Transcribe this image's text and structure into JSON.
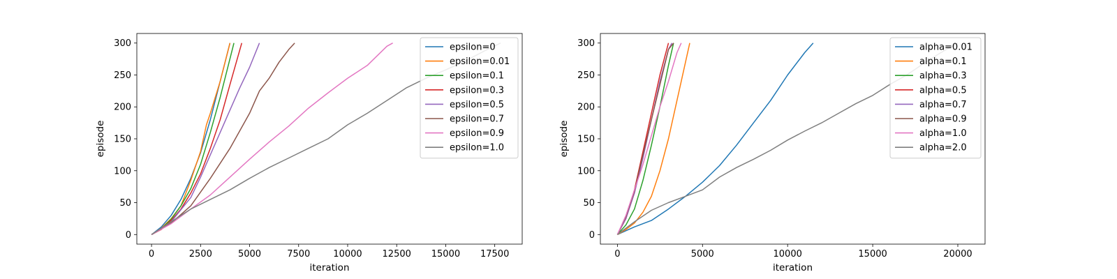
{
  "chart_data": [
    {
      "type": "line",
      "xlabel": "iteration",
      "ylabel": "episode",
      "xlim": [
        -750,
        18900
      ],
      "ylim": [
        -15,
        315
      ],
      "xticks": [
        0,
        2500,
        5000,
        7500,
        10000,
        12500,
        15000,
        17500
      ],
      "yticks": [
        0,
        50,
        100,
        150,
        200,
        250,
        300
      ],
      "xtick_labels": [
        "0",
        "2500",
        "5000",
        "7500",
        "10000",
        "12500",
        "15000",
        "17500"
      ],
      "ytick_labels": [
        "0",
        "50",
        "100",
        "150",
        "200",
        "250",
        "300"
      ],
      "grid": false,
      "legend_position": "upper right",
      "series": [
        {
          "name": "epsilon=0",
          "color": "#1f77b4",
          "x": [
            0,
            500,
            1000,
            1500,
            2000,
            2500,
            3000,
            3500,
            4000
          ],
          "y": [
            0,
            12,
            30,
            55,
            88,
            128,
            180,
            240,
            300
          ]
        },
        {
          "name": "epsilon=0.01",
          "color": "#ff7f0e",
          "x": [
            0,
            500,
            1000,
            1500,
            2000,
            2500,
            2800,
            3000,
            3500,
            4000
          ],
          "y": [
            0,
            10,
            25,
            45,
            85,
            130,
            172,
            190,
            240,
            300
          ]
        },
        {
          "name": "epsilon=0.1",
          "color": "#2ca02c",
          "x": [
            0,
            500,
            1000,
            1500,
            2000,
            2500,
            3000,
            3500,
            4200
          ],
          "y": [
            0,
            9,
            24,
            45,
            72,
            110,
            160,
            215,
            300
          ]
        },
        {
          "name": "epsilon=0.3",
          "color": "#d62728",
          "x": [
            0,
            500,
            1000,
            1500,
            2000,
            2500,
            3000,
            3500,
            4000,
            4600
          ],
          "y": [
            0,
            8,
            22,
            40,
            65,
            95,
            135,
            180,
            235,
            300
          ]
        },
        {
          "name": "epsilon=0.5",
          "color": "#9467bd",
          "x": [
            0,
            1000,
            2000,
            2500,
            3000,
            3500,
            4000,
            4500,
            5000,
            5500
          ],
          "y": [
            0,
            20,
            58,
            90,
            125,
            160,
            195,
            230,
            262,
            300
          ]
        },
        {
          "name": "epsilon=0.7",
          "color": "#8c564b",
          "x": [
            0,
            1000,
            2000,
            3000,
            4000,
            5000,
            5500,
            6000,
            6500,
            7000,
            7300
          ],
          "y": [
            0,
            18,
            45,
            88,
            135,
            190,
            225,
            245,
            270,
            290,
            300
          ]
        },
        {
          "name": "epsilon=0.9",
          "color": "#e377c2",
          "x": [
            0,
            1000,
            2000,
            3000,
            4000,
            5000,
            6000,
            7000,
            8000,
            9000,
            10000,
            11000,
            12000,
            12300
          ],
          "y": [
            0,
            17,
            40,
            62,
            90,
            118,
            145,
            170,
            198,
            222,
            245,
            265,
            295,
            300
          ]
        },
        {
          "name": "epsilon=1.0",
          "color": "#7f7f7f",
          "x": [
            0,
            1000,
            2000,
            3000,
            4000,
            5000,
            6000,
            7000,
            8000,
            9000,
            10000,
            11000,
            12000,
            13000,
            14000,
            15000,
            16000,
            17000,
            17800
          ],
          "y": [
            0,
            20,
            40,
            55,
            70,
            88,
            105,
            120,
            135,
            150,
            172,
            190,
            210,
            230,
            245,
            258,
            272,
            288,
            300
          ]
        }
      ]
    },
    {
      "type": "line",
      "xlabel": "iteration",
      "ylabel": "episode",
      "xlim": [
        -1000,
        21600
      ],
      "ylim": [
        -15,
        315
      ],
      "xticks": [
        0,
        5000,
        10000,
        15000,
        20000
      ],
      "yticks": [
        0,
        50,
        100,
        150,
        200,
        250,
        300
      ],
      "xtick_labels": [
        "0",
        "5000",
        "10000",
        "15000",
        "20000"
      ],
      "ytick_labels": [
        "0",
        "50",
        "100",
        "150",
        "200",
        "250",
        "300"
      ],
      "grid": false,
      "legend_position": "upper right",
      "series": [
        {
          "name": "alpha=0.01",
          "color": "#1f77b4",
          "x": [
            0,
            1000,
            2000,
            3000,
            4000,
            5000,
            6000,
            7000,
            8000,
            9000,
            10000,
            11000,
            11500
          ],
          "y": [
            0,
            12,
            22,
            40,
            60,
            82,
            108,
            140,
            175,
            210,
            250,
            285,
            300
          ]
        },
        {
          "name": "alpha=0.1",
          "color": "#ff7f0e",
          "x": [
            0,
            500,
            1000,
            1500,
            2000,
            2500,
            3000,
            3500,
            4000,
            4250
          ],
          "y": [
            0,
            8,
            18,
            35,
            60,
            100,
            150,
            210,
            270,
            300
          ]
        },
        {
          "name": "alpha=0.3",
          "color": "#2ca02c",
          "x": [
            0,
            500,
            1000,
            1500,
            2000,
            2500,
            3000,
            3300
          ],
          "y": [
            0,
            15,
            40,
            85,
            140,
            200,
            265,
            300
          ]
        },
        {
          "name": "alpha=0.5",
          "color": "#d62728",
          "x": [
            0,
            500,
            1000,
            1500,
            2000,
            2500,
            3000
          ],
          "y": [
            0,
            25,
            70,
            130,
            190,
            250,
            300
          ]
        },
        {
          "name": "alpha=0.7",
          "color": "#9467bd",
          "x": [
            0,
            500,
            1000,
            1500,
            2000,
            2500,
            3000,
            3200
          ],
          "y": [
            0,
            25,
            65,
            120,
            180,
            240,
            290,
            300
          ]
        },
        {
          "name": "alpha=0.9",
          "color": "#8c564b",
          "x": [
            0,
            500,
            1000,
            1500,
            2000,
            2500,
            3000,
            3300
          ],
          "y": [
            0,
            28,
            68,
            125,
            180,
            235,
            290,
            300
          ]
        },
        {
          "name": "alpha=1.0",
          "color": "#e377c2",
          "x": [
            0,
            500,
            1000,
            1500,
            2000,
            2500,
            3000,
            3500,
            3750
          ],
          "y": [
            0,
            30,
            70,
            110,
            155,
            200,
            240,
            285,
            300
          ]
        },
        {
          "name": "alpha=2.0",
          "color": "#7f7f7f",
          "x": [
            0,
            1000,
            2000,
            3000,
            4000,
            5000,
            6000,
            7000,
            8000,
            9000,
            10000,
            11000,
            12000,
            13000,
            14000,
            15000,
            16000,
            17000,
            18000,
            19000,
            20000
          ],
          "y": [
            0,
            20,
            38,
            50,
            60,
            70,
            90,
            105,
            118,
            132,
            148,
            162,
            175,
            190,
            205,
            218,
            235,
            250,
            268,
            285,
            300
          ]
        }
      ]
    }
  ]
}
